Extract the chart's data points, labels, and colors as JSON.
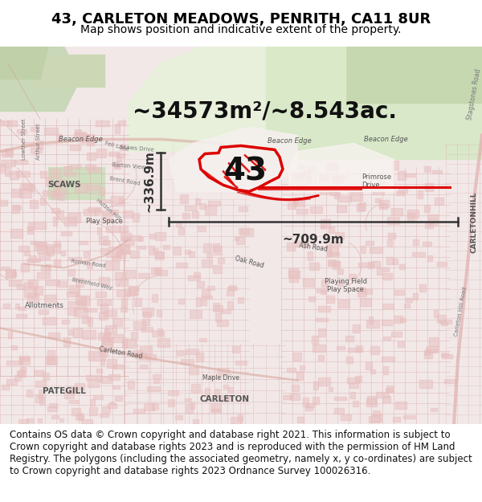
{
  "title": "43, CARLETON MEADOWS, PENRITH, CA11 8UR",
  "subtitle": "Map shows position and indicative extent of the property.",
  "footer": "Contains OS data © Crown copyright and database right 2021. This information is subject to Crown copyright and database rights 2023 and is reproduced with the permission of HM Land Registry. The polygons (including the associated geometry, namely x, y co-ordinates) are subject to Crown copyright and database rights 2023 Ordnance Survey 100026316.",
  "area_label": "~34573m²/~8.543ac.",
  "width_label": "~709.9m",
  "height_label": "~336.9m",
  "property_number": "43",
  "bg_color": "#ffffff",
  "map_bg": "#f5eeee",
  "red_outline": "#dd0000",
  "dim_color": "#333333",
  "title_fontsize": 13,
  "subtitle_fontsize": 10,
  "footer_fontsize": 8.5,
  "label_fontsize": 20,
  "property_label_fontsize": 28
}
